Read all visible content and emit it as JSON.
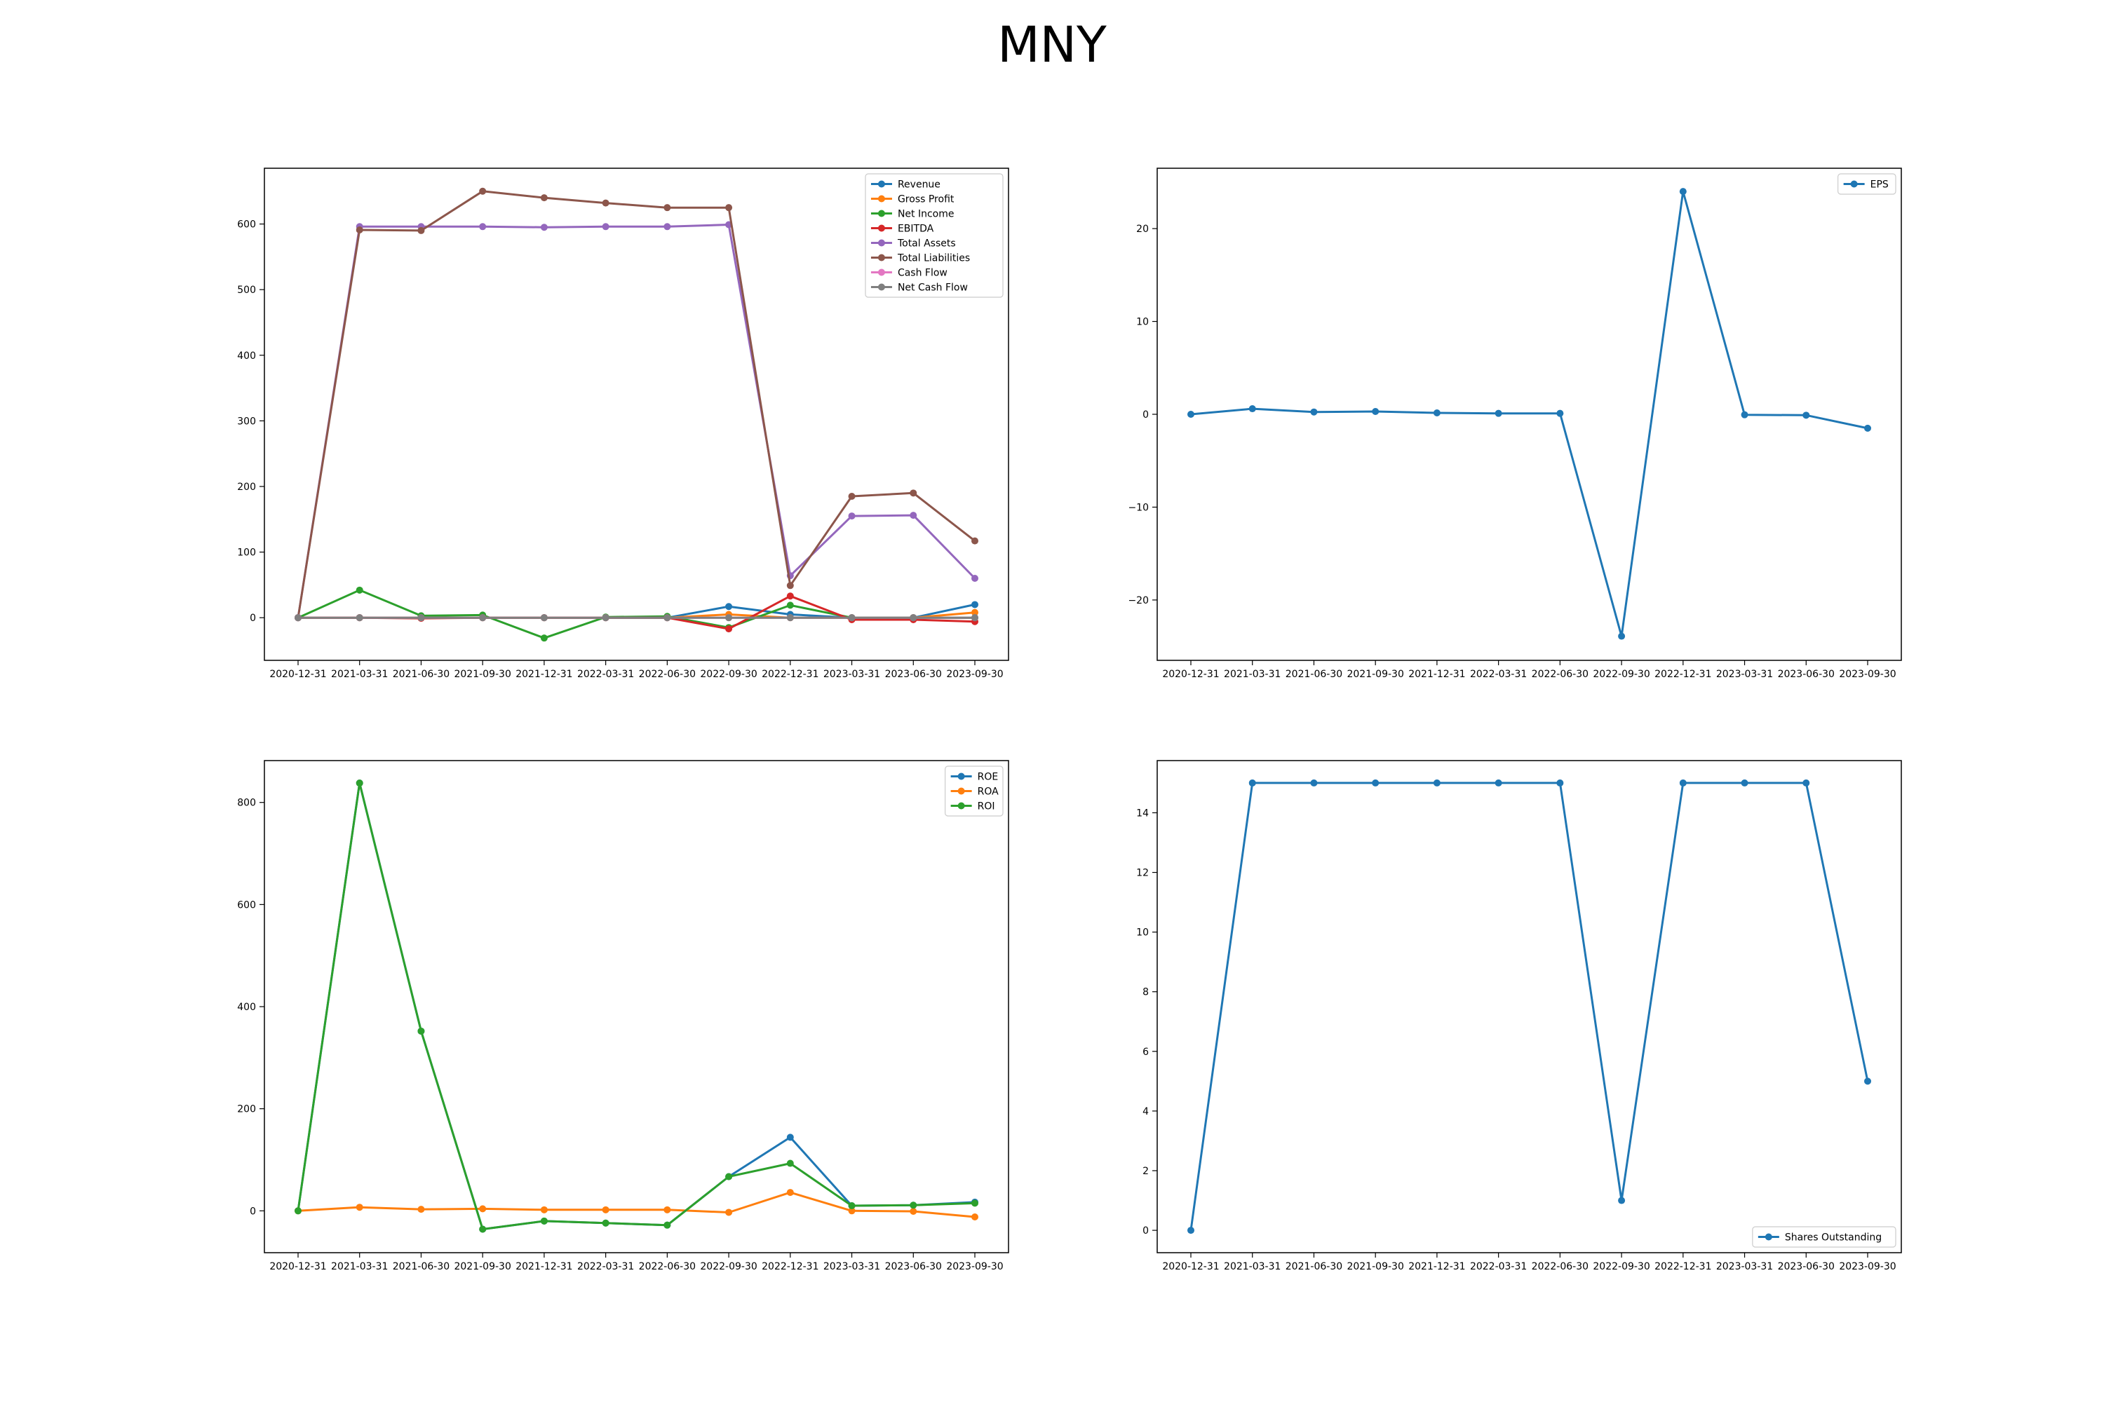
{
  "figure": {
    "title": "MNY"
  },
  "chart_data": [
    {
      "type": "line",
      "title": "",
      "xlabel": "",
      "ylabel": "",
      "x": [
        "2020-12-31",
        "2021-03-31",
        "2021-06-30",
        "2021-09-30",
        "2021-12-31",
        "2022-03-31",
        "2022-06-30",
        "2022-09-30",
        "2022-12-31",
        "2023-03-31",
        "2023-06-30",
        "2023-09-30"
      ],
      "ylim": [
        -65,
        685
      ],
      "yticks": [
        0,
        100,
        200,
        300,
        400,
        500,
        600
      ],
      "legend": "top-right",
      "series": [
        {
          "name": "Revenue",
          "color": "#1f77b4",
          "values": [
            0,
            0,
            0,
            0,
            0,
            0,
            0,
            17,
            5,
            0,
            0,
            20
          ]
        },
        {
          "name": "Gross Profit",
          "color": "#ff7f0e",
          "values": [
            0,
            0,
            0,
            0,
            0,
            0,
            0,
            5,
            0,
            0,
            0,
            8
          ]
        },
        {
          "name": "Net Income",
          "color": "#2ca02c",
          "values": [
            0,
            42,
            3,
            4,
            -31,
            1,
            2,
            -15,
            19,
            0,
            0,
            0
          ]
        },
        {
          "name": "EBITDA",
          "color": "#d62728",
          "values": [
            0,
            0,
            -1,
            0,
            0,
            0,
            0,
            -17,
            33,
            -3,
            -3,
            -6
          ]
        },
        {
          "name": "Total Assets",
          "color": "#9467bd",
          "values": [
            0,
            596,
            596,
            596,
            595,
            596,
            596,
            599,
            64,
            155,
            156,
            60
          ]
        },
        {
          "name": "Total Liabilities",
          "color": "#8c564b",
          "values": [
            0,
            591,
            590,
            650,
            640,
            632,
            625,
            625,
            49,
            185,
            190,
            117
          ]
        },
        {
          "name": "Cash Flow",
          "color": "#e377c2",
          "values": [
            0,
            0,
            0,
            0,
            0,
            0,
            0,
            0,
            0,
            0,
            0,
            0
          ]
        },
        {
          "name": "Net Cash Flow",
          "color": "#7f7f7f",
          "values": [
            0,
            0,
            0,
            0,
            0,
            0,
            0,
            0,
            0,
            0,
            0,
            0
          ]
        }
      ]
    },
    {
      "type": "line",
      "title": "",
      "xlabel": "",
      "ylabel": "",
      "x": [
        "2020-12-31",
        "2021-03-31",
        "2021-06-30",
        "2021-09-30",
        "2021-12-31",
        "2022-03-31",
        "2022-06-30",
        "2022-09-30",
        "2022-12-31",
        "2023-03-31",
        "2023-06-30",
        "2023-09-30"
      ],
      "ylim": [
        -26.5,
        26.5
      ],
      "yticks": [
        -20,
        -10,
        0,
        10,
        20
      ],
      "legend": "top-right",
      "series": [
        {
          "name": "EPS",
          "color": "#1f77b4",
          "values": [
            0,
            0.6,
            0.25,
            0.3,
            0.15,
            0.1,
            0.1,
            -23.9,
            24,
            -0.05,
            -0.1,
            -1.5
          ]
        }
      ]
    },
    {
      "type": "line",
      "title": "",
      "xlabel": "",
      "ylabel": "",
      "x": [
        "2020-12-31",
        "2021-03-31",
        "2021-06-30",
        "2021-09-30",
        "2021-12-31",
        "2022-03-31",
        "2022-06-30",
        "2022-09-30",
        "2022-12-31",
        "2023-03-31",
        "2023-06-30",
        "2023-09-30"
      ],
      "ylim": [
        -82,
        882
      ],
      "yticks": [
        0,
        200,
        400,
        600,
        800
      ],
      "legend": "top-right",
      "series": [
        {
          "name": "ROE",
          "color": "#1f77b4",
          "values": [
            0,
            838,
            352,
            -36,
            -20,
            -24,
            -28,
            67,
            144,
            10,
            11,
            17
          ]
        },
        {
          "name": "ROA",
          "color": "#ff7f0e",
          "values": [
            0,
            7,
            3,
            4,
            2,
            2,
            2,
            -3,
            36,
            0,
            -1,
            -12
          ]
        },
        {
          "name": "ROI",
          "color": "#2ca02c",
          "values": [
            0,
            838,
            352,
            -36,
            -20,
            -24,
            -28,
            67,
            93,
            10,
            11,
            15
          ]
        }
      ]
    },
    {
      "type": "line",
      "title": "",
      "xlabel": "",
      "ylabel": "",
      "x": [
        "2020-12-31",
        "2021-03-31",
        "2021-06-30",
        "2021-09-30",
        "2021-12-31",
        "2022-03-31",
        "2022-06-30",
        "2022-09-30",
        "2022-12-31",
        "2023-03-31",
        "2023-06-30",
        "2023-09-30"
      ],
      "ylim": [
        -0.75,
        15.75
      ],
      "yticks": [
        0,
        2,
        4,
        6,
        8,
        10,
        12,
        14
      ],
      "legend": "bottom-right",
      "series": [
        {
          "name": "Shares Outstanding",
          "color": "#1f77b4",
          "values": [
            0,
            15,
            15,
            15,
            15,
            15,
            15,
            1,
            15,
            15,
            15,
            5
          ]
        }
      ]
    }
  ]
}
